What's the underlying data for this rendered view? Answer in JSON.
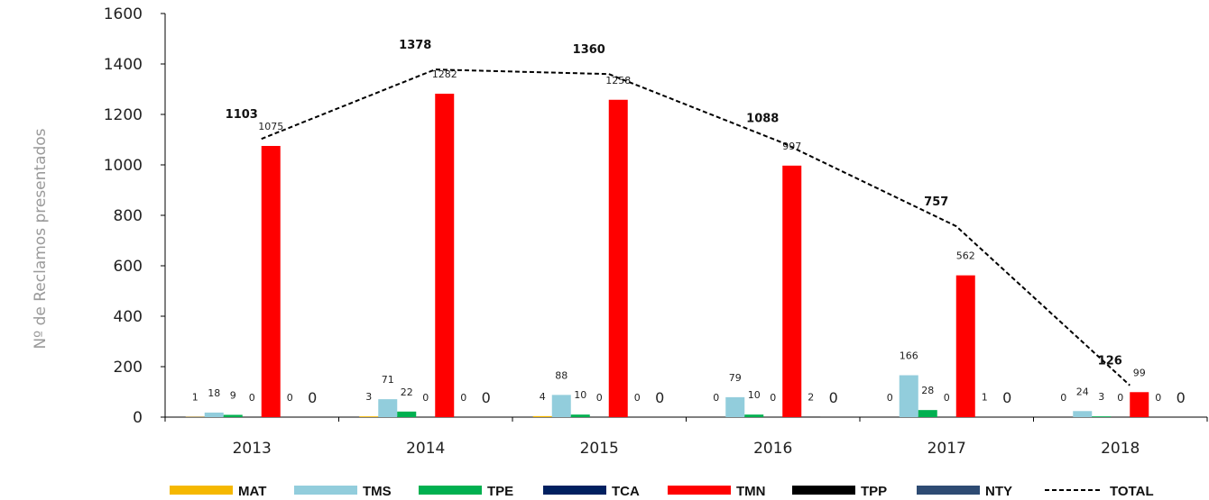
{
  "chart_data": {
    "type": "bar",
    "ylabel": "Nº de Reclamos presentados",
    "ylim": [
      0,
      1600
    ],
    "yticks": [
      0,
      200,
      400,
      600,
      800,
      1000,
      1200,
      1400,
      1600
    ],
    "categories": [
      "2013",
      "2014",
      "2015",
      "2016",
      "2017",
      "2018"
    ],
    "series": [
      {
        "name": "MAT",
        "color": "#F5B800",
        "values": [
          1,
          3,
          4,
          0,
          0,
          0
        ]
      },
      {
        "name": "TMS",
        "color": "#92CDDC",
        "values": [
          18,
          71,
          88,
          79,
          166,
          24
        ]
      },
      {
        "name": "TPE",
        "color": "#00B050",
        "values": [
          9,
          22,
          10,
          10,
          28,
          3
        ]
      },
      {
        "name": "TCA",
        "color": "#002060",
        "values": [
          0,
          0,
          0,
          0,
          0,
          0
        ]
      },
      {
        "name": "TMN",
        "color": "#FF0000",
        "values": [
          1075,
          1282,
          1258,
          997,
          562,
          99
        ]
      },
      {
        "name": "TPP",
        "color": "#000000",
        "values": [
          0,
          0,
          0,
          2,
          1,
          0
        ]
      },
      {
        "name": "NTY",
        "color": "#2E4B73",
        "values": [
          0,
          0,
          0,
          0,
          0,
          0
        ]
      }
    ],
    "total": {
      "name": "TOTAL",
      "style": "dashed",
      "values": [
        1103,
        1378,
        1360,
        1088,
        757,
        126
      ]
    },
    "legend": "bottom",
    "grid": false
  }
}
